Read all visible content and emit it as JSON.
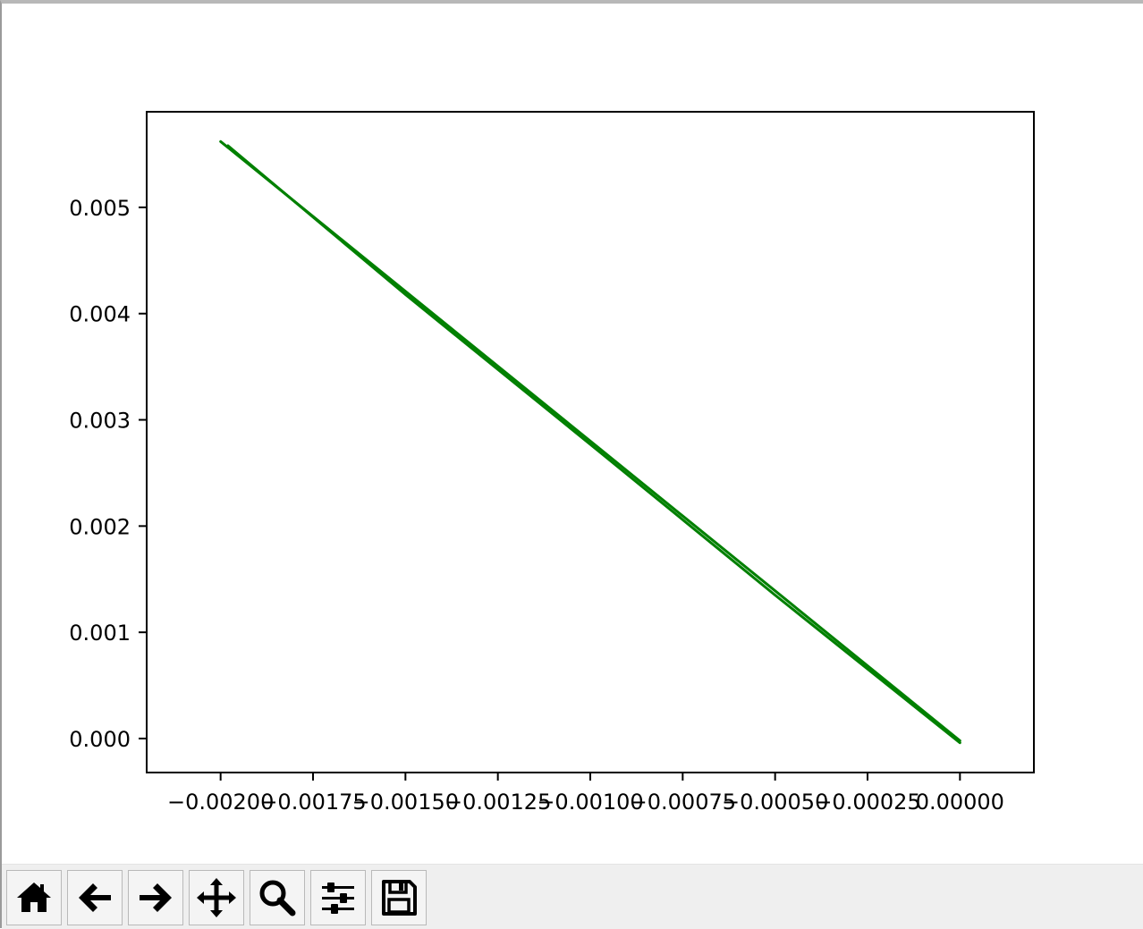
{
  "chart_data": {
    "type": "line",
    "title": "",
    "xlabel": "",
    "ylabel": "",
    "xlim": [
      -0.0022,
      0.0002
    ],
    "ylim": [
      -0.00032,
      0.0059
    ],
    "x_ticks": [
      -0.002,
      -0.00175,
      -0.0015,
      -0.00125,
      -0.001,
      -0.00075,
      -0.0005,
      -0.00025,
      0.0
    ],
    "x_tick_labels": [
      "−0.00200",
      "−0.00175",
      "−0.00150",
      "−0.00125",
      "−0.00100",
      "−0.00075",
      "−0.00050",
      "−0.00025",
      "0.00000"
    ],
    "y_ticks": [
      0.0,
      0.001,
      0.002,
      0.003,
      0.004,
      0.005
    ],
    "y_tick_labels": [
      "0.000",
      "0.001",
      "0.002",
      "0.003",
      "0.004",
      "0.005"
    ],
    "grid": false,
    "series": [
      {
        "color": "#008000",
        "x": [
          -0.002,
          -0.0015,
          -0.001,
          -0.0005,
          0.0
        ],
        "y": [
          0.00562,
          0.00421,
          0.0028,
          0.00139,
          -2e-05
        ]
      },
      {
        "color": "#008000",
        "x": [
          -0.00198,
          -0.0015,
          -0.001,
          -0.0005,
          0.0
        ],
        "y": [
          0.00558,
          0.00418,
          0.00277,
          0.00135,
          -4e-05
        ]
      }
    ]
  },
  "toolbar": {
    "buttons": [
      {
        "name": "home-button",
        "icon": "home-icon"
      },
      {
        "name": "back-button",
        "icon": "arrow-left-icon"
      },
      {
        "name": "forward-button",
        "icon": "arrow-right-icon"
      },
      {
        "name": "pan-button",
        "icon": "move-icon"
      },
      {
        "name": "zoom-button",
        "icon": "magnifier-icon"
      },
      {
        "name": "configure-subplots-button",
        "icon": "sliders-icon"
      },
      {
        "name": "save-button",
        "icon": "floppy-disk-icon"
      }
    ]
  }
}
